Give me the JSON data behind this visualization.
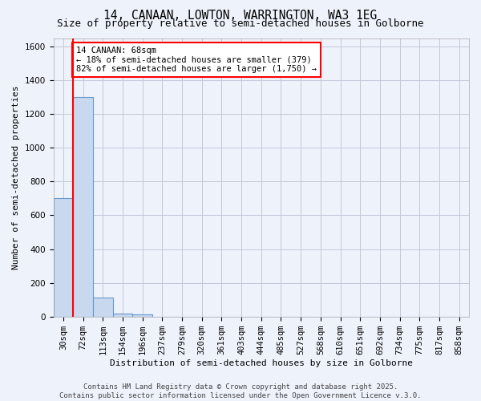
{
  "title": "14, CANAAN, LOWTON, WARRINGTON, WA3 1EG",
  "subtitle": "Size of property relative to semi-detached houses in Golborne",
  "xlabel": "Distribution of semi-detached houses by size in Golborne",
  "ylabel": "Number of semi-detached properties",
  "categories": [
    "30sqm",
    "72sqm",
    "113sqm",
    "154sqm",
    "196sqm",
    "237sqm",
    "279sqm",
    "320sqm",
    "361sqm",
    "403sqm",
    "444sqm",
    "485sqm",
    "527sqm",
    "568sqm",
    "610sqm",
    "651sqm",
    "692sqm",
    "734sqm",
    "775sqm",
    "817sqm",
    "858sqm"
  ],
  "values": [
    700,
    1300,
    115,
    20,
    14,
    0,
    0,
    0,
    0,
    0,
    0,
    0,
    0,
    0,
    0,
    0,
    0,
    0,
    0,
    0,
    0
  ],
  "bar_color": "#c8d8ee",
  "bar_edge_color": "#6699cc",
  "grid_color": "#c0c8d8",
  "vline_color": "red",
  "vline_x": 0.5,
  "annotation_text": "14 CANAAN: 68sqm\n← 18% of semi-detached houses are smaller (379)\n82% of semi-detached houses are larger (1,750) →",
  "annotation_box_color": "white",
  "annotation_border_color": "red",
  "background_color": "#eef2fb",
  "plot_bg_color": "#eef2fb",
  "ylim": [
    0,
    1650
  ],
  "yticks": [
    0,
    200,
    400,
    600,
    800,
    1000,
    1200,
    1400,
    1600
  ],
  "title_fontsize": 10.5,
  "subtitle_fontsize": 9,
  "ylabel_fontsize": 8,
  "xlabel_fontsize": 8,
  "tick_fontsize": 7.5,
  "annot_fontsize": 7.5,
  "footer_text": "Contains HM Land Registry data © Crown copyright and database right 2025.\nContains public sector information licensed under the Open Government Licence v.3.0.",
  "footer_fontsize": 6.5
}
